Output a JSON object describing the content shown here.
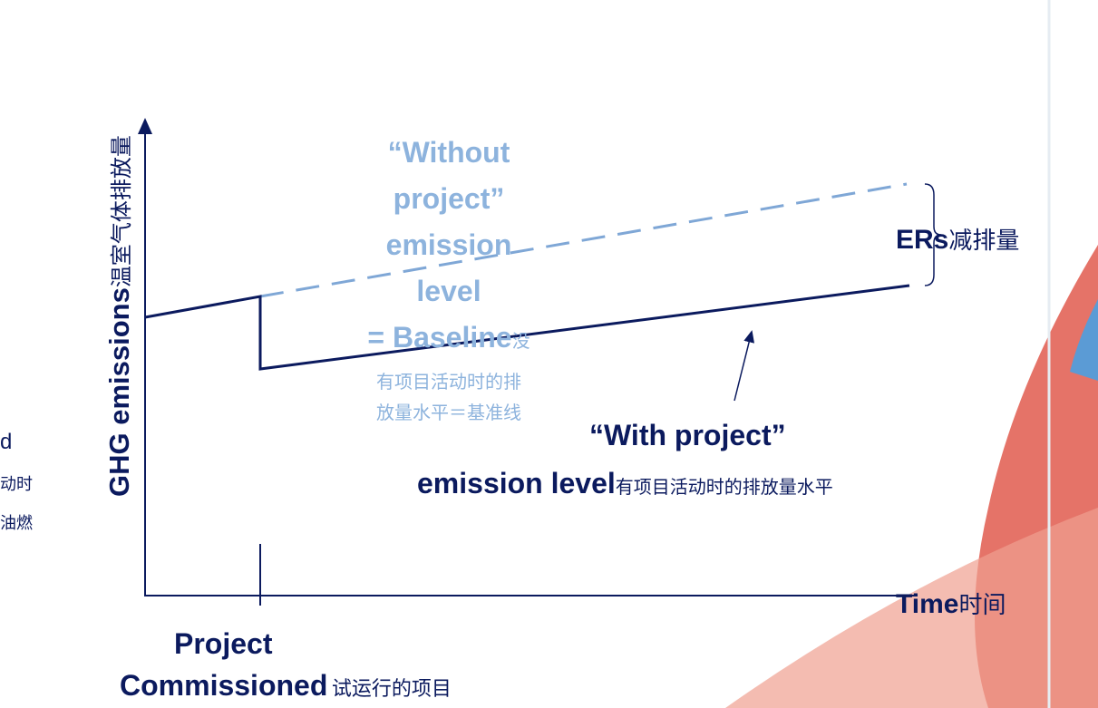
{
  "y_axis_label": {
    "en": "GHG emissions",
    "zh": "温室气体排放量"
  },
  "x_axis_label": {
    "en": "Time",
    "zh": "时间"
  },
  "baseline_label": {
    "en_lines": [
      "“Without",
      "project”",
      "emission",
      "level",
      "= Baseline"
    ],
    "zh_lines": [
      "没",
      "有项目活动时的排",
      "放量水平＝基准线"
    ]
  },
  "with_project_label": {
    "en_line1": "“With project”",
    "en_line2": "emission level",
    "zh": "有项目活动时的排放量水平"
  },
  "reductions_label": {
    "en": "ERs",
    "zh": "减排量"
  },
  "commissioned_label": {
    "en_line1": "Project",
    "en_line2": "Commissioned",
    "zh": "试运行的项目"
  },
  "cropped_left_text": [
    "d",
    "动时",
    "油燃"
  ]
}
